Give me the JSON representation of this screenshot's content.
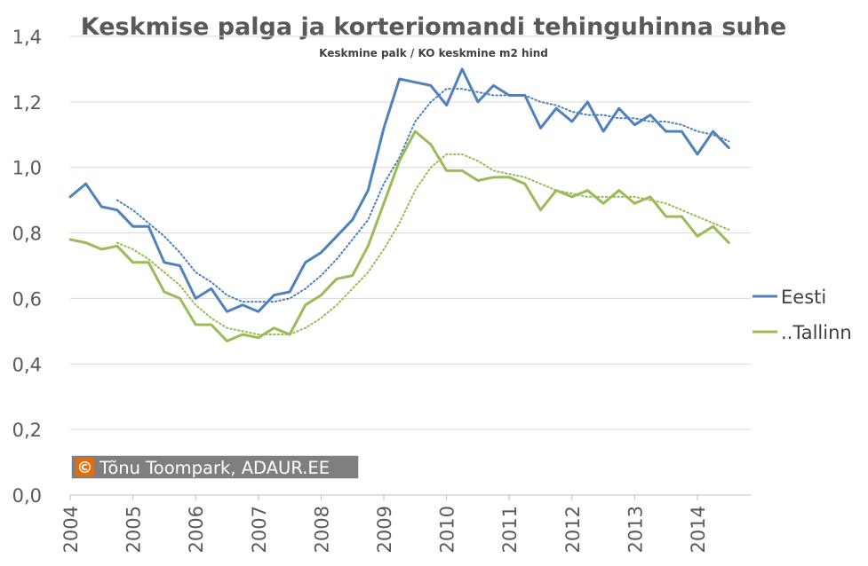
{
  "chart_data": {
    "type": "line",
    "title": "Keskmise palga ja korteriomandi tehinguhinna suhe",
    "subtitle": "Keskmine palk / KO keskmine m2 hind",
    "ylim": [
      0,
      1.4
    ],
    "y_ticks": [
      "0,0",
      "0,2",
      "0,4",
      "0,6",
      "0,8",
      "1,0",
      "1,2",
      "1,4"
    ],
    "y_tick_values": [
      0,
      0.2,
      0.4,
      0.6,
      0.8,
      1.0,
      1.2,
      1.4
    ],
    "x_ticks": [
      "2004",
      "2005",
      "2006",
      "2007",
      "2008",
      "2009",
      "2010",
      "2011",
      "2012",
      "2013",
      "2014"
    ],
    "x_tick_values": [
      2004,
      2005,
      2006,
      2007,
      2008,
      2009,
      2010,
      2011,
      2012,
      2013,
      2014
    ],
    "xlim": [
      2004,
      2014.85
    ],
    "grid": "horizontal",
    "legend_position": "right",
    "series": [
      {
        "name": "Eesti",
        "color": "#4f81bd",
        "x": [
          2004.0,
          2004.25,
          2004.5,
          2004.75,
          2005.0,
          2005.25,
          2005.5,
          2005.75,
          2006.0,
          2006.25,
          2006.5,
          2006.75,
          2007.0,
          2007.25,
          2007.5,
          2007.75,
          2008.0,
          2008.25,
          2008.5,
          2008.75,
          2009.0,
          2009.25,
          2009.5,
          2009.75,
          2010.0,
          2010.25,
          2010.5,
          2010.75,
          2011.0,
          2011.25,
          2011.5,
          2011.75,
          2012.0,
          2012.25,
          2012.5,
          2012.75,
          2013.0,
          2013.25,
          2013.5,
          2013.75,
          2014.0,
          2014.25,
          2014.5
        ],
        "values": [
          0.91,
          0.95,
          0.88,
          0.87,
          0.82,
          0.82,
          0.71,
          0.7,
          0.6,
          0.63,
          0.56,
          0.58,
          0.56,
          0.61,
          0.62,
          0.71,
          0.74,
          0.79,
          0.84,
          0.93,
          1.12,
          1.27,
          1.26,
          1.25,
          1.19,
          1.3,
          1.2,
          1.25,
          1.22,
          1.22,
          1.12,
          1.18,
          1.14,
          1.2,
          1.11,
          1.18,
          1.13,
          1.16,
          1.11,
          1.11,
          1.04,
          1.11,
          1.06
        ]
      },
      {
        "name": "..Tallinn",
        "color": "#9bbb59",
        "x": [
          2004.0,
          2004.25,
          2004.5,
          2004.75,
          2005.0,
          2005.25,
          2005.5,
          2005.75,
          2006.0,
          2006.25,
          2006.5,
          2006.75,
          2007.0,
          2007.25,
          2007.5,
          2007.75,
          2008.0,
          2008.25,
          2008.5,
          2008.75,
          2009.0,
          2009.25,
          2009.5,
          2009.75,
          2010.0,
          2010.25,
          2010.5,
          2010.75,
          2011.0,
          2011.25,
          2011.5,
          2011.75,
          2012.0,
          2012.25,
          2012.5,
          2012.75,
          2013.0,
          2013.25,
          2013.5,
          2013.75,
          2014.0,
          2014.25,
          2014.5
        ],
        "values": [
          0.78,
          0.77,
          0.75,
          0.76,
          0.71,
          0.71,
          0.62,
          0.6,
          0.52,
          0.52,
          0.47,
          0.49,
          0.48,
          0.51,
          0.49,
          0.58,
          0.61,
          0.66,
          0.67,
          0.76,
          0.89,
          1.02,
          1.11,
          1.07,
          0.99,
          0.99,
          0.96,
          0.97,
          0.97,
          0.95,
          0.87,
          0.93,
          0.91,
          0.93,
          0.89,
          0.93,
          0.89,
          0.91,
          0.85,
          0.85,
          0.79,
          0.82,
          0.77
        ]
      }
    ],
    "trendlines": [
      {
        "of_series": "Eesti",
        "style": "dotted",
        "color": "#4f81bd",
        "x": [
          2004.75,
          2005.0,
          2005.25,
          2005.5,
          2005.75,
          2006.0,
          2006.25,
          2006.5,
          2006.75,
          2007.0,
          2007.25,
          2007.5,
          2007.75,
          2008.0,
          2008.25,
          2008.5,
          2008.75,
          2009.0,
          2009.25,
          2009.5,
          2009.75,
          2010.0,
          2010.25,
          2010.5,
          2010.75,
          2011.0,
          2011.25,
          2011.5,
          2011.75,
          2012.0,
          2012.25,
          2012.5,
          2012.75,
          2013.0,
          2013.25,
          2013.5,
          2013.75,
          2014.0,
          2014.25,
          2014.5
        ],
        "values": [
          0.9,
          0.87,
          0.83,
          0.79,
          0.74,
          0.68,
          0.65,
          0.61,
          0.59,
          0.59,
          0.59,
          0.6,
          0.63,
          0.67,
          0.72,
          0.78,
          0.84,
          0.95,
          1.03,
          1.14,
          1.2,
          1.24,
          1.24,
          1.23,
          1.22,
          1.22,
          1.22,
          1.2,
          1.19,
          1.17,
          1.16,
          1.16,
          1.15,
          1.15,
          1.14,
          1.14,
          1.13,
          1.11,
          1.1,
          1.08
        ]
      },
      {
        "of_series": "..Tallinn",
        "style": "dotted",
        "color": "#9bbb59",
        "x": [
          2004.75,
          2005.0,
          2005.25,
          2005.5,
          2005.75,
          2006.0,
          2006.25,
          2006.5,
          2006.75,
          2007.0,
          2007.25,
          2007.5,
          2007.75,
          2008.0,
          2008.25,
          2008.5,
          2008.75,
          2009.0,
          2009.25,
          2009.5,
          2009.75,
          2010.0,
          2010.25,
          2010.5,
          2010.75,
          2011.0,
          2011.25,
          2011.5,
          2011.75,
          2012.0,
          2012.25,
          2012.5,
          2012.75,
          2013.0,
          2013.25,
          2013.5,
          2013.75,
          2014.0,
          2014.25,
          2014.5
        ],
        "values": [
          0.77,
          0.75,
          0.72,
          0.68,
          0.64,
          0.58,
          0.54,
          0.51,
          0.5,
          0.49,
          0.49,
          0.49,
          0.51,
          0.54,
          0.58,
          0.63,
          0.68,
          0.75,
          0.83,
          0.93,
          1.0,
          1.04,
          1.04,
          1.02,
          0.99,
          0.98,
          0.97,
          0.95,
          0.93,
          0.92,
          0.91,
          0.91,
          0.91,
          0.91,
          0.9,
          0.89,
          0.87,
          0.85,
          0.83,
          0.81
        ]
      }
    ]
  },
  "watermark": {
    "symbol": "©",
    "text": "Tõnu Toompark, ADAUR.EE",
    "icon_color": "#e46c0a",
    "background_color": "#7f7f7f"
  }
}
